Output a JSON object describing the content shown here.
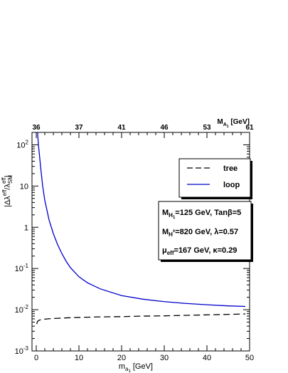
{
  "chart_data": {
    "type": "line",
    "x_axis": {
      "label_main": "m",
      "label_sub": "a",
      "label_subsub": "1",
      "label_unit": " [GeV]",
      "range": [
        -1,
        50
      ],
      "ticks": [
        0,
        10,
        20,
        30,
        40,
        50
      ],
      "tick_labels": [
        "0",
        "10",
        "20",
        "30",
        "40",
        "50"
      ]
    },
    "top_axis": {
      "label_main": "M",
      "label_sub": "A",
      "label_subsub": "1",
      "label_unit": " [GeV]",
      "ticks_at_x": [
        0,
        10,
        20,
        30,
        40,
        50
      ],
      "tick_labels": [
        "36",
        "37",
        "41",
        "46",
        "53",
        "61"
      ]
    },
    "y_axis": {
      "scale": "log",
      "range": [
        0.001,
        200
      ],
      "label": "|Δλ^eff/λ^eff_SM|",
      "label_parts": {
        "lead": "|Δλ",
        "sup1": "eff",
        "mid": "/λ",
        "sub": "SM",
        "sup2": "eff",
        "tail": "|"
      },
      "decades": [
        -3,
        -2,
        -1,
        0,
        1,
        2
      ],
      "tick_labels": [
        {
          "base": "10",
          "exp": "-3"
        },
        {
          "base": "10",
          "exp": "-2"
        },
        {
          "base": "10",
          "exp": "-1"
        },
        {
          "base": "",
          "exp": "1",
          "plain": "1"
        },
        {
          "base": "",
          "exp": "",
          "plain": "10"
        },
        {
          "base": "10",
          "exp": "2"
        }
      ]
    },
    "series": [
      {
        "name": "tree",
        "color": "#000000",
        "style": "dashed",
        "points": [
          [
            0.1,
            0.0045
          ],
          [
            0.3,
            0.0052
          ],
          [
            0.6,
            0.0055
          ],
          [
            1,
            0.0057
          ],
          [
            2,
            0.0059
          ],
          [
            3,
            0.00605
          ],
          [
            5,
            0.0062
          ],
          [
            8,
            0.0064
          ],
          [
            10,
            0.0065
          ],
          [
            15,
            0.0067
          ],
          [
            20,
            0.0068
          ],
          [
            25,
            0.007
          ],
          [
            30,
            0.0071
          ],
          [
            35,
            0.0073
          ],
          [
            40,
            0.0075
          ],
          [
            45,
            0.0077
          ],
          [
            49,
            0.0079
          ]
        ]
      },
      {
        "name": "loop",
        "color": "#0000cc",
        "style": "solid",
        "points": [
          [
            0.3,
            200
          ],
          [
            0.5,
            100
          ],
          [
            0.8,
            50
          ],
          [
            1,
            30
          ],
          [
            1.5,
            10
          ],
          [
            2,
            4.5
          ],
          [
            3,
            1.5
          ],
          [
            4,
            0.7
          ],
          [
            5,
            0.38
          ],
          [
            6,
            0.23
          ],
          [
            7,
            0.15
          ],
          [
            8,
            0.105
          ],
          [
            10,
            0.063
          ],
          [
            12,
            0.045
          ],
          [
            15,
            0.032
          ],
          [
            20,
            0.022
          ],
          [
            25,
            0.018
          ],
          [
            30,
            0.0157
          ],
          [
            35,
            0.0142
          ],
          [
            40,
            0.0132
          ],
          [
            45,
            0.0124
          ],
          [
            49,
            0.012
          ]
        ]
      }
    ],
    "legend": {
      "placement": "top-right",
      "entries": [
        {
          "label": "tree",
          "color": "#000000",
          "style": "dashed"
        },
        {
          "label": "loop",
          "color": "#0000cc",
          "style": "solid"
        }
      ]
    },
    "parameters": [
      {
        "symbol": "M",
        "sub": "H",
        "subsub": "1",
        "text": "=125 GeV, Tanβ=5"
      },
      {
        "symbol": "M",
        "sub": "H",
        "subsub": "±",
        "text": "=820 GeV, λ=0.57"
      },
      {
        "symbol": "μ",
        "sub": "eff",
        "subsub": "",
        "text": "=167 GeV, κ=0.29"
      }
    ],
    "grid": false
  }
}
